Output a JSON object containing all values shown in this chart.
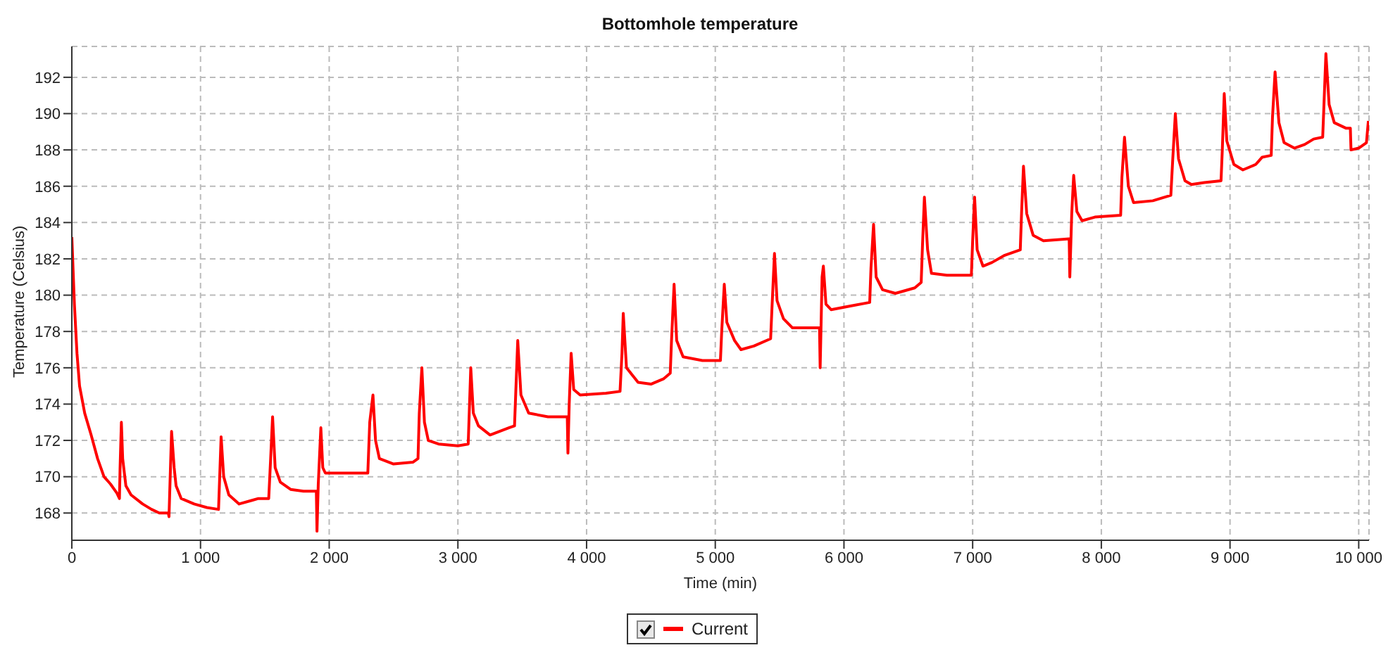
{
  "chart_data": {
    "type": "line",
    "title": "Bottomhole temperature",
    "xlabel": "Time (min)",
    "ylabel": "Temperature (Celsius)",
    "xlim": [
      0,
      10080
    ],
    "ylim": [
      166.5,
      193.7
    ],
    "xticks": [
      {
        "value": 0,
        "label": "0"
      },
      {
        "value": 1000,
        "label": "1 000"
      },
      {
        "value": 2000,
        "label": "2 000"
      },
      {
        "value": 3000,
        "label": "3 000"
      },
      {
        "value": 4000,
        "label": "4 000"
      },
      {
        "value": 5000,
        "label": "5 000"
      },
      {
        "value": 6000,
        "label": "6 000"
      },
      {
        "value": 7000,
        "label": "7 000"
      },
      {
        "value": 8000,
        "label": "8 000"
      },
      {
        "value": 9000,
        "label": "9 000"
      },
      {
        "value": 10000,
        "label": "10 000"
      }
    ],
    "yticks": [
      168,
      170,
      172,
      174,
      176,
      178,
      180,
      182,
      184,
      186,
      188,
      190,
      192
    ],
    "grid": true,
    "legend": "bottom",
    "marker": "none",
    "line_style": "solid",
    "series": [
      {
        "name": "Current",
        "color": "#ff0000",
        "x": [
          0,
          20,
          40,
          60,
          100,
          150,
          200,
          250,
          300,
          350,
          370,
          375,
          385,
          395,
          420,
          460,
          550,
          620,
          680,
          750,
          755,
          775,
          795,
          810,
          850,
          950,
          1050,
          1140,
          1160,
          1180,
          1220,
          1300,
          1400,
          1450,
          1530,
          1545,
          1560,
          1580,
          1620,
          1700,
          1800,
          1900,
          1905,
          1915,
          1935,
          1950,
          1970,
          2300,
          2315,
          2340,
          2360,
          2390,
          2500,
          2650,
          2690,
          2700,
          2720,
          2740,
          2770,
          2850,
          3000,
          3080,
          3100,
          3120,
          3160,
          3250,
          3400,
          3440,
          3450,
          3465,
          3490,
          3550,
          3700,
          3850,
          3855,
          3865,
          3880,
          3900,
          3950,
          4150,
          4260,
          4275,
          4285,
          4310,
          4400,
          4500,
          4600,
          4650,
          4660,
          4680,
          4700,
          4750,
          4900,
          5040,
          5050,
          5070,
          5090,
          5150,
          5200,
          5300,
          5430,
          5440,
          5460,
          5480,
          5530,
          5600,
          5810,
          5815,
          5830,
          5840,
          5860,
          5900,
          6050,
          6200,
          6210,
          6230,
          6250,
          6300,
          6400,
          6550,
          6600,
          6610,
          6625,
          6650,
          6680,
          6800,
          6990,
          7000,
          7015,
          7035,
          7080,
          7150,
          7250,
          7370,
          7380,
          7395,
          7420,
          7470,
          7550,
          7750,
          7755,
          7770,
          7785,
          7810,
          7850,
          7950,
          8150,
          8160,
          8180,
          8210,
          8250,
          8400,
          8540,
          8555,
          8575,
          8600,
          8650,
          8700,
          8800,
          8930,
          8940,
          8955,
          8975,
          9030,
          9100,
          9200,
          9250,
          9320,
          9330,
          9350,
          9380,
          9420,
          9500,
          9580,
          9650,
          9720,
          9730,
          9745,
          9770,
          9810,
          9900,
          9935,
          9940,
          10000,
          10060,
          10075
        ],
        "values": [
          183.2,
          179.5,
          176.8,
          175,
          173.5,
          172.3,
          171,
          170,
          169.6,
          169.1,
          168.8,
          170.5,
          173,
          171,
          169.5,
          169,
          168.5,
          168.2,
          168,
          168,
          167.8,
          172.5,
          170.5,
          169.5,
          168.8,
          168.5,
          168.3,
          168.2,
          172.2,
          170,
          169,
          168.5,
          168.7,
          168.8,
          168.8,
          171,
          173.3,
          170.5,
          169.7,
          169.3,
          169.2,
          169.2,
          167,
          169.6,
          172.7,
          170.5,
          170.2,
          170.2,
          173,
          174.5,
          172,
          171,
          170.7,
          170.8,
          171,
          173.5,
          176,
          173,
          172,
          171.8,
          171.7,
          171.8,
          176,
          173.5,
          172.8,
          172.3,
          172.7,
          172.8,
          174.7,
          177.5,
          174.5,
          173.5,
          173.3,
          173.3,
          171.3,
          174,
          176.8,
          174.8,
          174.5,
          174.6,
          174.7,
          176.8,
          179,
          176,
          175.2,
          175.1,
          175.4,
          175.7,
          177.5,
          180.6,
          177.5,
          176.6,
          176.4,
          176.4,
          178,
          180.6,
          178.5,
          177.5,
          177,
          177.2,
          177.6,
          179.2,
          182.3,
          179.7,
          178.7,
          178.2,
          178.2,
          176,
          181,
          181.6,
          179.5,
          179.2,
          179.4,
          179.6,
          181.5,
          183.9,
          181,
          180.3,
          180.1,
          180.4,
          180.7,
          182.7,
          185.4,
          182.5,
          181.2,
          181.1,
          181.1,
          183,
          185.4,
          182.5,
          181.6,
          181.8,
          182.2,
          182.5,
          184.5,
          187.1,
          184.5,
          183.3,
          183,
          183.1,
          181,
          184.5,
          186.6,
          184.6,
          184.1,
          184.3,
          184.4,
          186.5,
          188.7,
          186,
          185.1,
          185.2,
          185.5,
          187.5,
          190,
          187.5,
          186.3,
          186.1,
          186.2,
          186.3,
          188,
          191.1,
          188.5,
          187.2,
          186.9,
          187.2,
          187.6,
          187.7,
          189.8,
          192.3,
          189.5,
          188.4,
          188.1,
          188.3,
          188.6,
          188.7,
          190.5,
          193.3,
          190.5,
          189.5,
          189.2,
          189.2,
          188,
          188.1,
          188.4,
          189.6
        ]
      }
    ]
  }
}
